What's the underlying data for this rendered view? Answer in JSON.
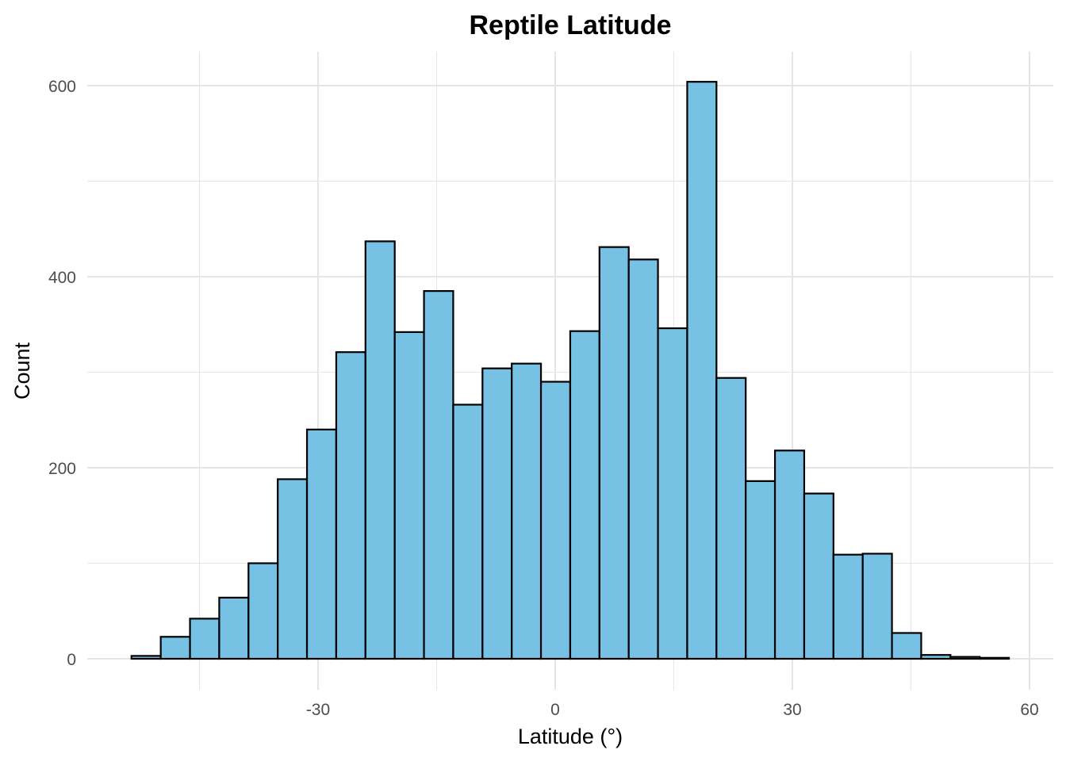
{
  "chart_data": {
    "type": "bar",
    "subtype": "histogram",
    "title": "Reptile Latitude",
    "xlabel": "Latitude (°)",
    "ylabel": "Count",
    "xlim": [
      -58,
      62
    ],
    "ylim": [
      -30,
      635
    ],
    "x_ticks": [
      -30,
      0,
      30,
      60
    ],
    "x_tick_labels": [
      "-30",
      "0",
      "30",
      "60"
    ],
    "x_minor_ticks": [
      -45,
      -15,
      15,
      45
    ],
    "y_ticks": [
      0,
      200,
      400,
      600
    ],
    "y_tick_labels": [
      "0",
      "200",
      "400",
      "600"
    ],
    "y_minor_ticks": [
      100,
      300,
      500
    ],
    "grid": true,
    "bin_start": -53.6,
    "bin_width": 3.7,
    "values": [
      3,
      23,
      42,
      64,
      100,
      188,
      240,
      321,
      437,
      342,
      385,
      266,
      304,
      309,
      290,
      343,
      431,
      418,
      346,
      604,
      294,
      186,
      218,
      173,
      109,
      110,
      27,
      4,
      2,
      1
    ],
    "fill_color": "#77C1E4",
    "edge_color": "#000000",
    "grid_color": "#E5E5E5"
  }
}
